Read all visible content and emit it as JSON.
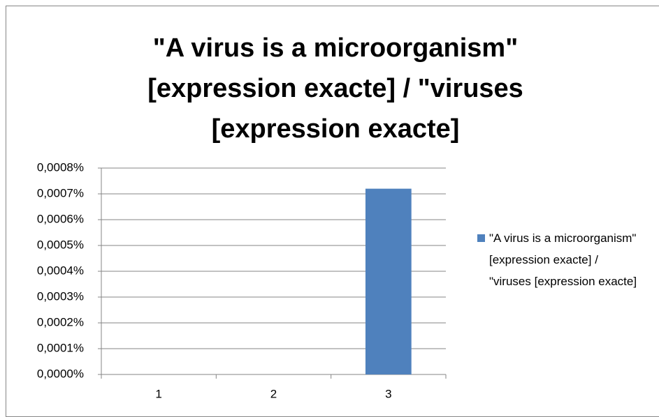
{
  "chart_data": {
    "type": "bar",
    "title": "\"A virus is a microorganism\" [expression exacte] / \"viruses [expression exacte]",
    "categories": [
      "1",
      "2",
      "3"
    ],
    "series": [
      {
        "name": "\"A virus is a microorganism\" [expression exacte] / \"viruses [expression exacte]",
        "color": "#4f81bd",
        "values": [
          0,
          0,
          0.00072
        ]
      }
    ],
    "ylim": [
      0,
      0.0008
    ],
    "yticks": [
      {
        "value": 0,
        "label": "0,0000%"
      },
      {
        "value": 0.0001,
        "label": "0,0001%"
      },
      {
        "value": 0.0002,
        "label": "0,0002%"
      },
      {
        "value": 0.0003,
        "label": "0,0003%"
      },
      {
        "value": 0.0004,
        "label": "0,0004%"
      },
      {
        "value": 0.0005,
        "label": "0,0005%"
      },
      {
        "value": 0.0006,
        "label": "0,0006%"
      },
      {
        "value": 0.0007,
        "label": "0,0007%"
      },
      {
        "value": 0.0008,
        "label": "0,0008%"
      }
    ],
    "grid": true,
    "legend": "right"
  }
}
